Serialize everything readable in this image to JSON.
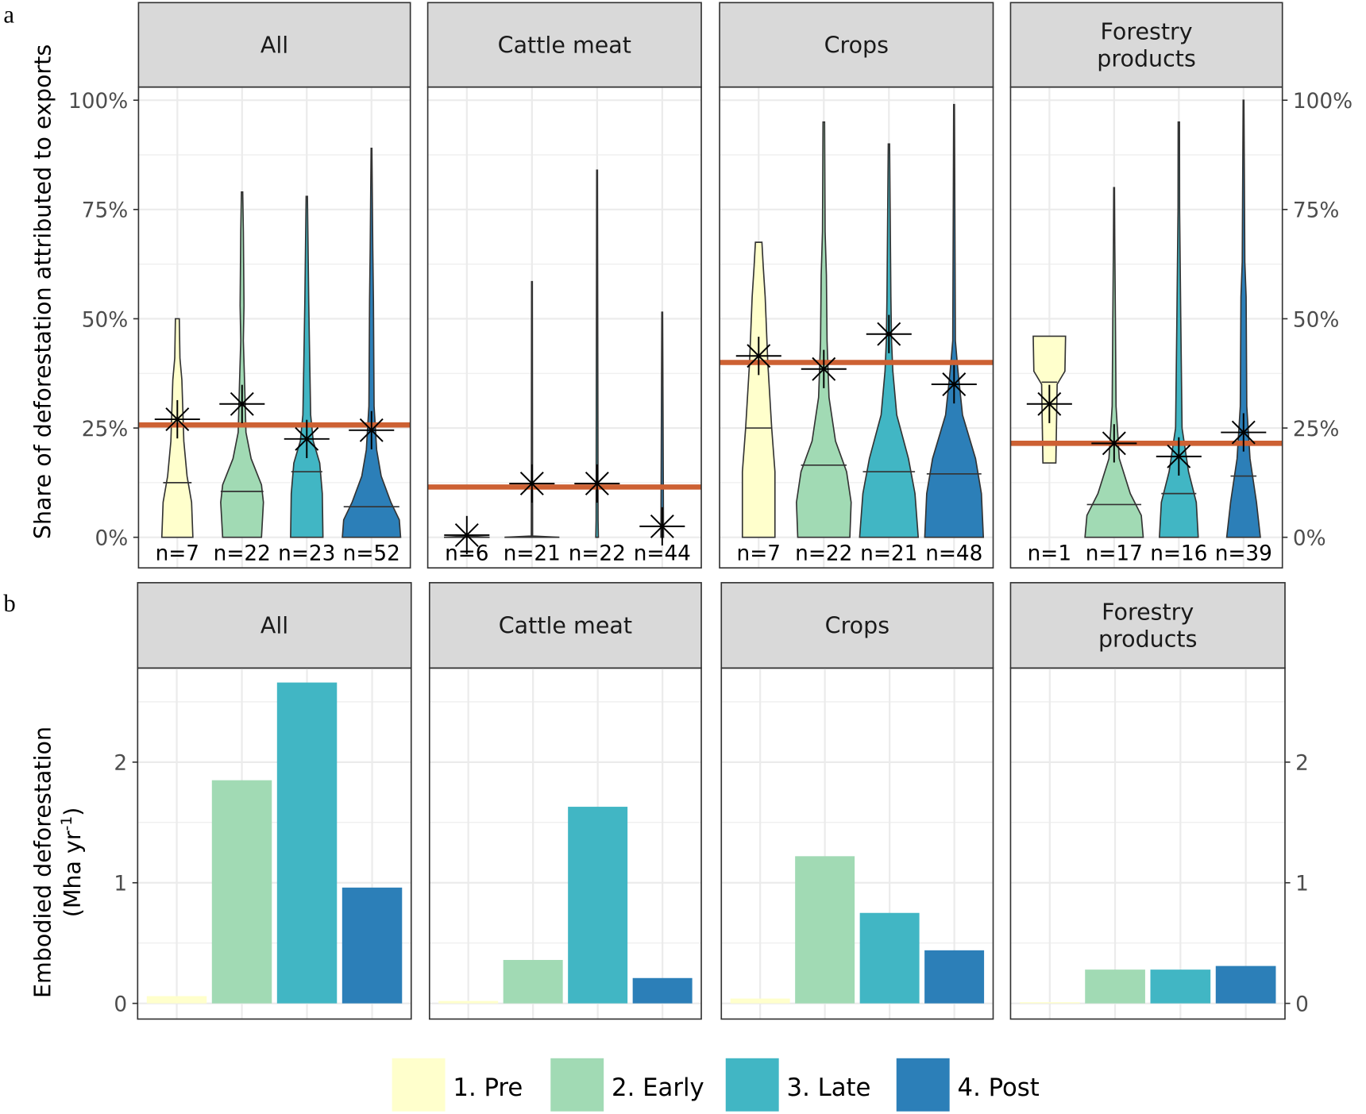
{
  "panel_labels": {
    "a": "a",
    "b": "b"
  },
  "legend": {
    "items": [
      {
        "label": "1. Pre",
        "color": "#ffffcc"
      },
      {
        "label": "2. Early",
        "color": "#a1dab4"
      },
      {
        "label": "3. Late",
        "color": "#41b6c4"
      },
      {
        "label": "4. Post",
        "color": "#2c7fb8"
      }
    ]
  },
  "colors": {
    "reference_line": "#cd6133",
    "strip": "#d9d9d9",
    "grid": "#ebebeb"
  },
  "chart_data": [
    {
      "type": "violin",
      "ylabel": "Share of deforestation attributed to exports",
      "ylim": [
        -7,
        103
      ],
      "yticks": [
        0,
        25,
        50,
        75,
        100
      ],
      "ytick_labels": [
        "0%",
        "25%",
        "50%",
        "75%",
        "100%"
      ],
      "grid": true,
      "categories": [
        "1. Pre",
        "2. Early",
        "3. Late",
        "4. Post"
      ],
      "facets": [
        {
          "title": [
            "All"
          ],
          "reference_line": 25.7,
          "n_labels": [
            "n=7",
            "n=22",
            "n=23",
            "n=52"
          ],
          "means": [
            27,
            30.5,
            22.5,
            24.5
          ],
          "medians": [
            12.5,
            10.5,
            15,
            7
          ],
          "density_profiles": [
            [
              [
                0,
                0.24
              ],
              [
                8,
                0.22
              ],
              [
                14,
                0.15
              ],
              [
                22,
                0.1
              ],
              [
                36,
                0.07
              ],
              [
                41,
                0.04
              ],
              [
                50,
                0.03
              ]
            ],
            [
              [
                0,
                0.3
              ],
              [
                8,
                0.33
              ],
              [
                12,
                0.3
              ],
              [
                18,
                0.14
              ],
              [
                24,
                0.06
              ],
              [
                35,
                0.04
              ],
              [
                45,
                0.02
              ],
              [
                53,
                0.03
              ],
              [
                70,
                0.02
              ],
              [
                79,
                0.01
              ]
            ],
            [
              [
                0,
                0.25
              ],
              [
                10,
                0.24
              ],
              [
                17,
                0.2
              ],
              [
                22,
                0.1
              ],
              [
                28,
                0.06
              ],
              [
                45,
                0.04
              ],
              [
                54,
                0.03
              ],
              [
                78,
                0.01
              ]
            ],
            [
              [
                0,
                0.45
              ],
              [
                4,
                0.43
              ],
              [
                8,
                0.3
              ],
              [
                14,
                0.15
              ],
              [
                20,
                0.08
              ],
              [
                30,
                0.04
              ],
              [
                54,
                0.03
              ],
              [
                66,
                0.02
              ],
              [
                89,
                0.006
              ]
            ]
          ]
        },
        {
          "title": [
            "Cattle meat"
          ],
          "reference_line": 11.5,
          "n_labels": [
            "n=6",
            "n=21",
            "n=22",
            "n=44"
          ],
          "means": [
            0.5,
            12.3,
            12.3,
            2.5
          ],
          "medians": [
            0,
            0,
            null,
            null
          ],
          "density_profiles": [
            [
              [
                0,
                0.35
              ],
              [
                0.3,
                0.01
              ]
            ],
            [
              [
                0,
                0.42
              ],
              [
                0.3,
                0.01
              ],
              [
                58.5,
                0.006
              ]
            ],
            [
              [
                0,
                0.02
              ],
              [
                4,
                0.015
              ],
              [
                84,
                0.006
              ]
            ],
            [
              [
                0,
                0.02
              ],
              [
                51.5,
                0.006
              ]
            ]
          ]
        },
        {
          "title": [
            "Crops"
          ],
          "reference_line": 40,
          "n_labels": [
            "n=7",
            "n=22",
            "n=21",
            "n=48"
          ],
          "means": [
            41.5,
            38.5,
            46.5,
            35
          ],
          "medians": [
            25,
            16.5,
            15,
            14.5
          ],
          "density_profiles": [
            [
              [
                0,
                0.25
              ],
              [
                15,
                0.25
              ],
              [
                25,
                0.2
              ],
              [
                40,
                0.14
              ],
              [
                55,
                0.1
              ],
              [
                62,
                0.07
              ],
              [
                67.5,
                0.05
              ]
            ],
            [
              [
                0,
                0.4
              ],
              [
                8,
                0.42
              ],
              [
                15,
                0.35
              ],
              [
                22,
                0.18
              ],
              [
                32,
                0.08
              ],
              [
                45,
                0.05
              ],
              [
                60,
                0.04
              ],
              [
                70,
                0.02
              ],
              [
                95,
                0.012
              ]
            ],
            [
              [
                0,
                0.45
              ],
              [
                10,
                0.4
              ],
              [
                18,
                0.3
              ],
              [
                28,
                0.12
              ],
              [
                38,
                0.06
              ],
              [
                45,
                0.04
              ],
              [
                55,
                0.03
              ],
              [
                90,
                0.01
              ]
            ],
            [
              [
                0,
                0.45
              ],
              [
                10,
                0.42
              ],
              [
                18,
                0.33
              ],
              [
                28,
                0.13
              ],
              [
                38,
                0.06
              ],
              [
                45,
                0.02
              ],
              [
                75,
                0.012
              ],
              [
                99,
                0.006
              ]
            ]
          ]
        },
        {
          "title": [
            "Forestry",
            "products"
          ],
          "reference_line": 21.5,
          "n_labels": [
            "n=1",
            "n=17",
            "n=16",
            "n=39"
          ],
          "means": [
            30.5,
            21.5,
            18.5,
            24
          ],
          "medians": [
            35.5,
            7.5,
            10,
            14
          ],
          "density_profiles": [
            [
              [
                17,
                0.1
              ],
              [
                35,
                0.12
              ],
              [
                38,
                0.24
              ],
              [
                46,
                0.25
              ]
            ],
            [
              [
                0,
                0.45
              ],
              [
                5,
                0.42
              ],
              [
                10,
                0.25
              ],
              [
                18,
                0.08
              ],
              [
                30,
                0.03
              ],
              [
                50,
                0.02
              ],
              [
                68,
                0.01
              ],
              [
                80,
                0.006
              ]
            ],
            [
              [
                0,
                0.3
              ],
              [
                8,
                0.27
              ],
              [
                15,
                0.15
              ],
              [
                25,
                0.05
              ],
              [
                50,
                0.03
              ],
              [
                75,
                0.012
              ],
              [
                95,
                0.01
              ]
            ],
            [
              [
                0,
                0.26
              ],
              [
                8,
                0.2
              ],
              [
                18,
                0.1
              ],
              [
                30,
                0.05
              ],
              [
                55,
                0.04
              ],
              [
                63,
                0.02
              ],
              [
                100,
                0.006
              ]
            ]
          ]
        }
      ]
    },
    {
      "type": "bar",
      "ylabel": [
        "Embodied deforestation",
        "(Mha yr",
        "-1",
        ")"
      ],
      "ylim": [
        -0.13,
        2.78
      ],
      "yticks": [
        0,
        1,
        2
      ],
      "ytick_labels": [
        "0",
        "1",
        "2"
      ],
      "grid": true,
      "categories": [
        "1. Pre",
        "2. Early",
        "3. Late",
        "4. Post"
      ],
      "facets": [
        {
          "title": [
            "All"
          ],
          "values": [
            0.06,
            1.85,
            2.66,
            0.96
          ]
        },
        {
          "title": [
            "Cattle meat"
          ],
          "values": [
            0.02,
            0.36,
            1.63,
            0.21
          ]
        },
        {
          "title": [
            "Crops"
          ],
          "values": [
            0.04,
            1.22,
            0.75,
            0.44
          ]
        },
        {
          "title": [
            "Forestry",
            "products"
          ],
          "values": [
            0.01,
            0.28,
            0.28,
            0.31
          ]
        }
      ]
    }
  ]
}
